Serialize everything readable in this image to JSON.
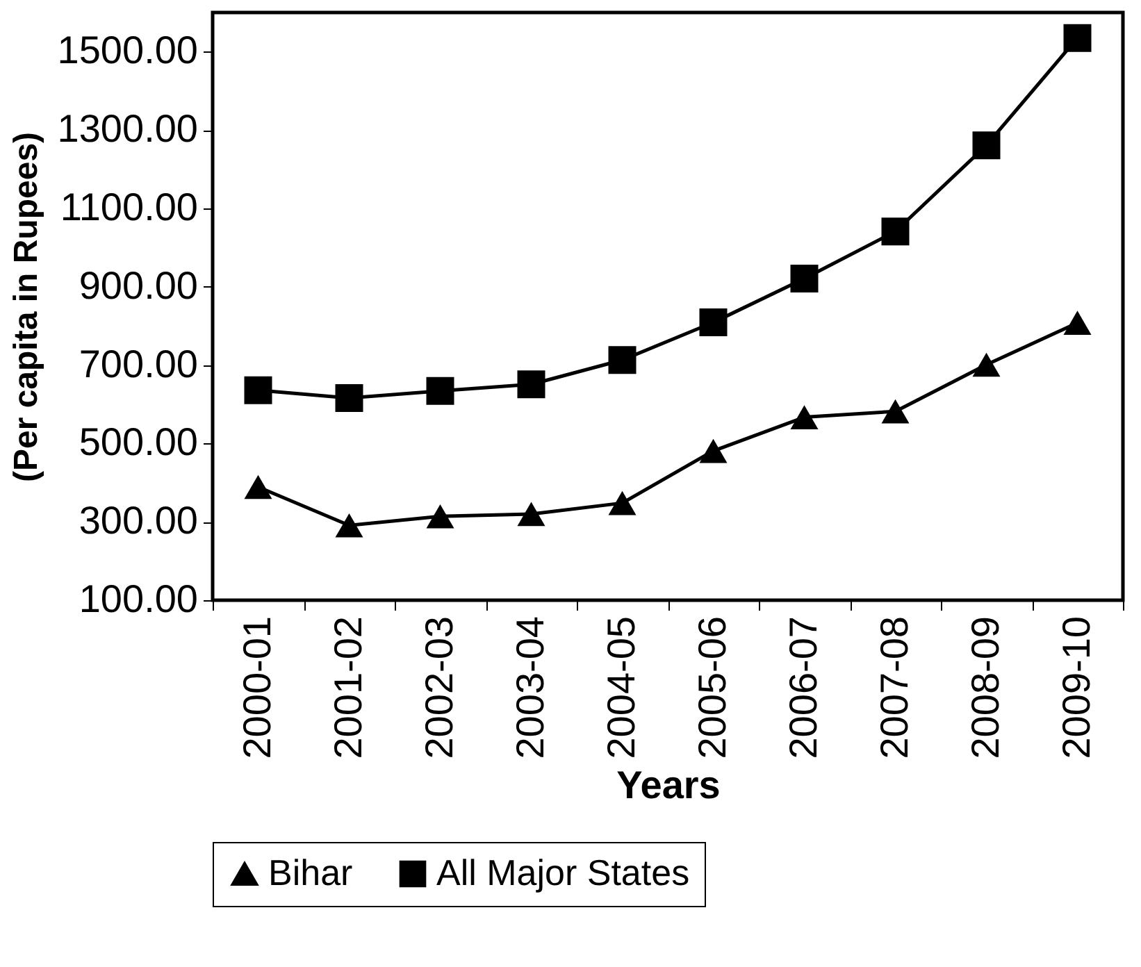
{
  "chart_data": {
    "type": "line",
    "xlabel": "Years",
    "ylabel": "(Per capita in Rupees)",
    "categories": [
      "2000-01",
      "2001-02",
      "2002-03",
      "2003-04",
      "2004-05",
      "2005-06",
      "2006-07",
      "2007-08",
      "2008-09",
      "2009-10"
    ],
    "series": [
      {
        "name": "Bihar",
        "color": "#000000",
        "marker": "triangle",
        "values": [
          389,
          291,
          314,
          320,
          348,
          481,
          567,
          582,
          701,
          808
        ]
      },
      {
        "name": "All Major States",
        "color": "#000000",
        "marker": "square",
        "values": [
          636,
          616,
          634,
          651,
          713,
          809,
          921,
          1041,
          1261,
          1535
        ]
      }
    ],
    "ylim": [
      100,
      1600
    ],
    "yticks": [
      {
        "value": 100,
        "label": "100.00"
      },
      {
        "value": 300,
        "label": "300.00"
      },
      {
        "value": 500,
        "label": "500.00"
      },
      {
        "value": 700,
        "label": "700.00"
      },
      {
        "value": 900,
        "label": "900.00"
      },
      {
        "value": 1100,
        "label": "1100.00"
      },
      {
        "value": 1300,
        "label": "1300.00"
      },
      {
        "value": 1500,
        "label": "1500.00"
      }
    ],
    "grid": false,
    "legend": "bottom",
    "line_style": "solid"
  }
}
